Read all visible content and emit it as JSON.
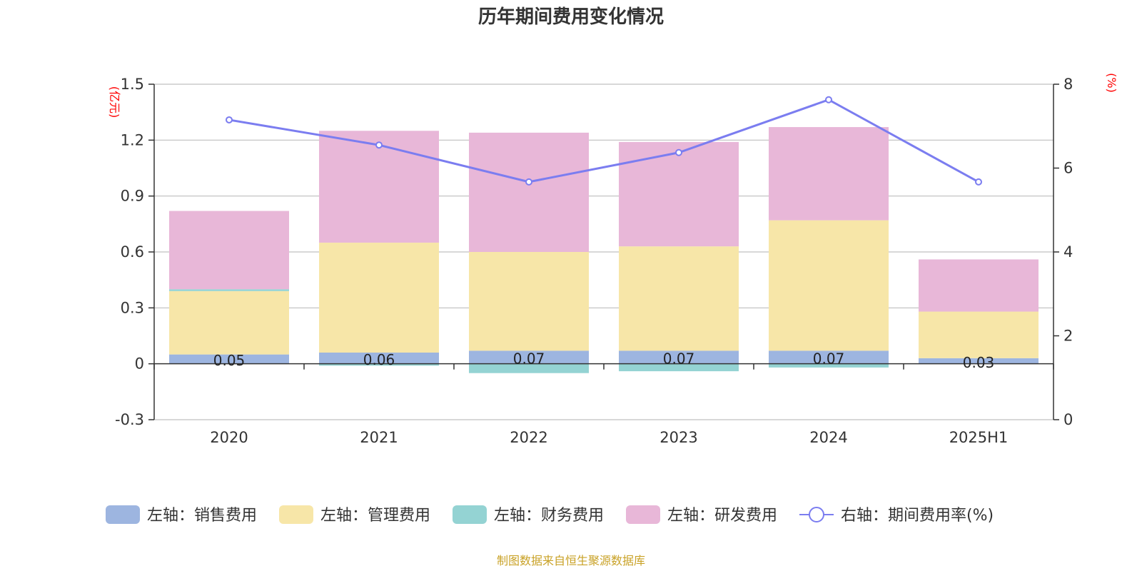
{
  "chart_data": {
    "type": "bar",
    "title": "历年期间费用变化情况",
    "categories": [
      "2020",
      "2021",
      "2022",
      "2023",
      "2024",
      "2025H1"
    ],
    "left_axis": {
      "unit": "(亿元)",
      "ticks": [
        "1.5",
        "1.2",
        "0.9",
        "0.6",
        "0.3",
        "0",
        "-0.3"
      ],
      "ylim": [
        -0.3,
        1.5
      ]
    },
    "right_axis": {
      "unit": "(%)",
      "ticks": [
        "8",
        "6",
        "4",
        "2",
        "0"
      ],
      "ylim": [
        0,
        8
      ]
    },
    "series": [
      {
        "name": "左轴：销售费用",
        "color": "#9db5e0",
        "values": [
          0.05,
          0.06,
          0.07,
          0.07,
          0.07,
          0.03
        ],
        "labels": [
          "0.05",
          "0.06",
          "0.07",
          "0.07",
          "0.07",
          "0.03"
        ]
      },
      {
        "name": "左轴：管理费用",
        "color": "#f7e6a8",
        "values": [
          0.34,
          0.59,
          0.53,
          0.56,
          0.7,
          0.25
        ]
      },
      {
        "name": "左轴：财务费用",
        "color": "#94d3d3",
        "values": [
          0.01,
          -0.01,
          -0.05,
          -0.04,
          -0.02,
          0.0
        ]
      },
      {
        "name": "左轴：研发费用",
        "color": "#e8b7d8",
        "values": [
          0.42,
          0.6,
          0.64,
          0.56,
          0.5,
          0.28
        ]
      }
    ],
    "line": {
      "name": "右轴：期间费用率(%)",
      "color": "#7b7df0",
      "values": [
        7.15,
        6.55,
        5.67,
        6.37,
        7.63,
        5.67
      ]
    },
    "grid": true,
    "legend_position": "bottom"
  },
  "source": "制图数据来自恒生聚源数据库"
}
